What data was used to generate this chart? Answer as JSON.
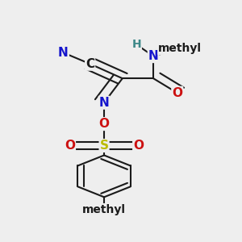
{
  "bg_color": "#eeeeee",
  "bond_color": "#1a1a1a",
  "bond_width": 1.5,
  "dbo": 0.018,
  "atom_colors": {
    "C": "#1a1a1a",
    "N_blue": "#1414cc",
    "N_teal": "#3d8888",
    "O": "#cc1111",
    "S": "#bbbb00",
    "H": "#3d8888"
  },
  "font_size": 11,
  "font_size_sm": 10,
  "xlim": [
    0.02,
    0.88
  ],
  "ylim": [
    -0.3,
    0.95
  ]
}
